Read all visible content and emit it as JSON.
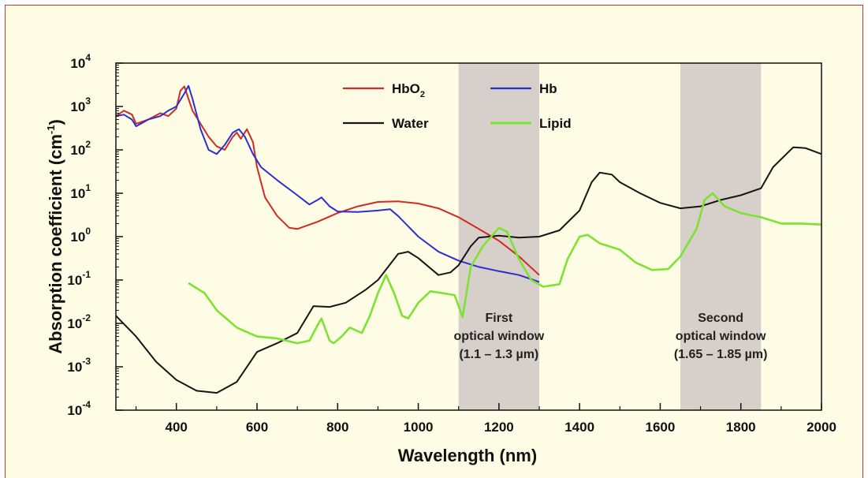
{
  "chart_data": {
    "type": "line",
    "xlabel": "Wavelength (nm)",
    "ylabel": "Absorption coefficient (cm",
    "ylabel_sup": "-1",
    "ylabel_close": ")",
    "xlim": [
      250,
      2000
    ],
    "ylim": [
      0.0001,
      10000
    ],
    "yscale": "log",
    "x_ticks": [
      400,
      600,
      800,
      1000,
      1200,
      1400,
      1600,
      1800,
      2000
    ],
    "y_ticks": [
      {
        "value": 0.0001,
        "base": "10",
        "exp": "-4"
      },
      {
        "value": 0.001,
        "base": "10",
        "exp": "-3"
      },
      {
        "value": 0.01,
        "base": "10",
        "exp": "-2"
      },
      {
        "value": 0.1,
        "base": "10",
        "exp": "-1"
      },
      {
        "value": 1,
        "base": "10",
        "exp": "0"
      },
      {
        "value": 10,
        "base": "10",
        "exp": "1"
      },
      {
        "value": 100,
        "base": "10",
        "exp": "2"
      },
      {
        "value": 1000,
        "base": "10",
        "exp": "3"
      },
      {
        "value": 10000,
        "base": "10",
        "exp": "4"
      }
    ],
    "legend_position": "top-center",
    "bands": [
      {
        "x0": 1100,
        "x1": 1300,
        "color": "#d7cfca",
        "label_lines": [
          "First",
          "optical window",
          "(1.1 – 1.3 µm)"
        ]
      },
      {
        "x0": 1650,
        "x1": 1850,
        "color": "#d7cfca",
        "label_lines": [
          "Second",
          "optical window",
          "(1.65 – 1.85 µm)"
        ]
      }
    ],
    "series": [
      {
        "name": "HbO",
        "name_sub": "2",
        "color": "#d12b22",
        "points": [
          [
            250,
            600
          ],
          [
            270,
            800
          ],
          [
            290,
            650
          ],
          [
            300,
            400
          ],
          [
            330,
            500
          ],
          [
            360,
            700
          ],
          [
            380,
            600
          ],
          [
            400,
            900
          ],
          [
            410,
            2300
          ],
          [
            420,
            2900
          ],
          [
            430,
            1500
          ],
          [
            440,
            800
          ],
          [
            460,
            400
          ],
          [
            480,
            200
          ],
          [
            500,
            120
          ],
          [
            520,
            100
          ],
          [
            540,
            200
          ],
          [
            550,
            250
          ],
          [
            560,
            180
          ],
          [
            575,
            300
          ],
          [
            590,
            150
          ],
          [
            600,
            40
          ],
          [
            620,
            8
          ],
          [
            650,
            3
          ],
          [
            680,
            1.6
          ],
          [
            700,
            1.5
          ],
          [
            750,
            2.2
          ],
          [
            800,
            3.5
          ],
          [
            850,
            5
          ],
          [
            900,
            6.3
          ],
          [
            950,
            6.5
          ],
          [
            1000,
            5.8
          ],
          [
            1050,
            4.5
          ],
          [
            1100,
            2.8
          ],
          [
            1150,
            1.5
          ],
          [
            1200,
            0.8
          ],
          [
            1250,
            0.35
          ],
          [
            1300,
            0.13
          ]
        ]
      },
      {
        "name": "Hb",
        "name_sub": "",
        "color": "#2b2fd1",
        "points": [
          [
            250,
            600
          ],
          [
            270,
            650
          ],
          [
            290,
            500
          ],
          [
            300,
            350
          ],
          [
            330,
            500
          ],
          [
            360,
            600
          ],
          [
            380,
            800
          ],
          [
            400,
            1000
          ],
          [
            420,
            2000
          ],
          [
            430,
            3000
          ],
          [
            440,
            1500
          ],
          [
            460,
            300
          ],
          [
            480,
            100
          ],
          [
            500,
            80
          ],
          [
            520,
            130
          ],
          [
            540,
            250
          ],
          [
            555,
            300
          ],
          [
            570,
            200
          ],
          [
            590,
            80
          ],
          [
            610,
            40
          ],
          [
            650,
            20
          ],
          [
            700,
            9
          ],
          [
            730,
            5.5
          ],
          [
            750,
            7
          ],
          [
            760,
            8
          ],
          [
            780,
            5
          ],
          [
            800,
            3.8
          ],
          [
            850,
            3.7
          ],
          [
            900,
            4
          ],
          [
            930,
            4.3
          ],
          [
            950,
            3
          ],
          [
            1000,
            1
          ],
          [
            1050,
            0.45
          ],
          [
            1100,
            0.28
          ],
          [
            1150,
            0.2
          ],
          [
            1200,
            0.16
          ],
          [
            1250,
            0.13
          ],
          [
            1300,
            0.09
          ]
        ]
      },
      {
        "name": "Water",
        "name_sub": "",
        "color": "#151515",
        "points": [
          [
            250,
            0.015
          ],
          [
            300,
            0.005
          ],
          [
            350,
            0.0013
          ],
          [
            400,
            0.0005
          ],
          [
            450,
            0.00028
          ],
          [
            500,
            0.00025
          ],
          [
            550,
            0.00045
          ],
          [
            600,
            0.0022
          ],
          [
            650,
            0.0035
          ],
          [
            700,
            0.006
          ],
          [
            740,
            0.025
          ],
          [
            780,
            0.024
          ],
          [
            820,
            0.03
          ],
          [
            870,
            0.06
          ],
          [
            900,
            0.1
          ],
          [
            950,
            0.4
          ],
          [
            975,
            0.45
          ],
          [
            1000,
            0.32
          ],
          [
            1050,
            0.13
          ],
          [
            1080,
            0.15
          ],
          [
            1100,
            0.22
          ],
          [
            1130,
            0.6
          ],
          [
            1150,
            0.95
          ],
          [
            1200,
            1.05
          ],
          [
            1250,
            0.95
          ],
          [
            1300,
            1.0
          ],
          [
            1350,
            1.4
          ],
          [
            1400,
            4
          ],
          [
            1430,
            18
          ],
          [
            1450,
            30
          ],
          [
            1480,
            27
          ],
          [
            1500,
            18
          ],
          [
            1550,
            10
          ],
          [
            1600,
            6
          ],
          [
            1650,
            4.5
          ],
          [
            1700,
            5
          ],
          [
            1750,
            7
          ],
          [
            1800,
            9
          ],
          [
            1850,
            13
          ],
          [
            1880,
            40
          ],
          [
            1930,
            115
          ],
          [
            1960,
            110
          ],
          [
            2000,
            80
          ]
        ]
      },
      {
        "name": "Lipid",
        "name_sub": "",
        "color": "#7de332",
        "points": [
          [
            430,
            0.085
          ],
          [
            470,
            0.05
          ],
          [
            500,
            0.02
          ],
          [
            550,
            0.008
          ],
          [
            600,
            0.005
          ],
          [
            650,
            0.0045
          ],
          [
            700,
            0.0035
          ],
          [
            730,
            0.004
          ],
          [
            750,
            0.009
          ],
          [
            760,
            0.013
          ],
          [
            780,
            0.004
          ],
          [
            790,
            0.0035
          ],
          [
            810,
            0.005
          ],
          [
            830,
            0.008
          ],
          [
            860,
            0.006
          ],
          [
            880,
            0.015
          ],
          [
            900,
            0.05
          ],
          [
            920,
            0.13
          ],
          [
            940,
            0.05
          ],
          [
            960,
            0.015
          ],
          [
            975,
            0.013
          ],
          [
            1000,
            0.03
          ],
          [
            1030,
            0.055
          ],
          [
            1060,
            0.05
          ],
          [
            1090,
            0.045
          ],
          [
            1110,
            0.014
          ],
          [
            1130,
            0.2
          ],
          [
            1160,
            0.6
          ],
          [
            1200,
            1.6
          ],
          [
            1220,
            1.3
          ],
          [
            1250,
            0.3
          ],
          [
            1280,
            0.1
          ],
          [
            1310,
            0.07
          ],
          [
            1350,
            0.08
          ],
          [
            1370,
            0.3
          ],
          [
            1400,
            1.0
          ],
          [
            1420,
            1.1
          ],
          [
            1450,
            0.7
          ],
          [
            1500,
            0.5
          ],
          [
            1540,
            0.25
          ],
          [
            1580,
            0.17
          ],
          [
            1620,
            0.18
          ],
          [
            1650,
            0.35
          ],
          [
            1690,
            1.5
          ],
          [
            1710,
            7
          ],
          [
            1730,
            10
          ],
          [
            1760,
            5
          ],
          [
            1800,
            3.5
          ],
          [
            1850,
            2.8
          ],
          [
            1900,
            2
          ],
          [
            1950,
            2
          ],
          [
            2000,
            1.9
          ]
        ]
      }
    ]
  }
}
